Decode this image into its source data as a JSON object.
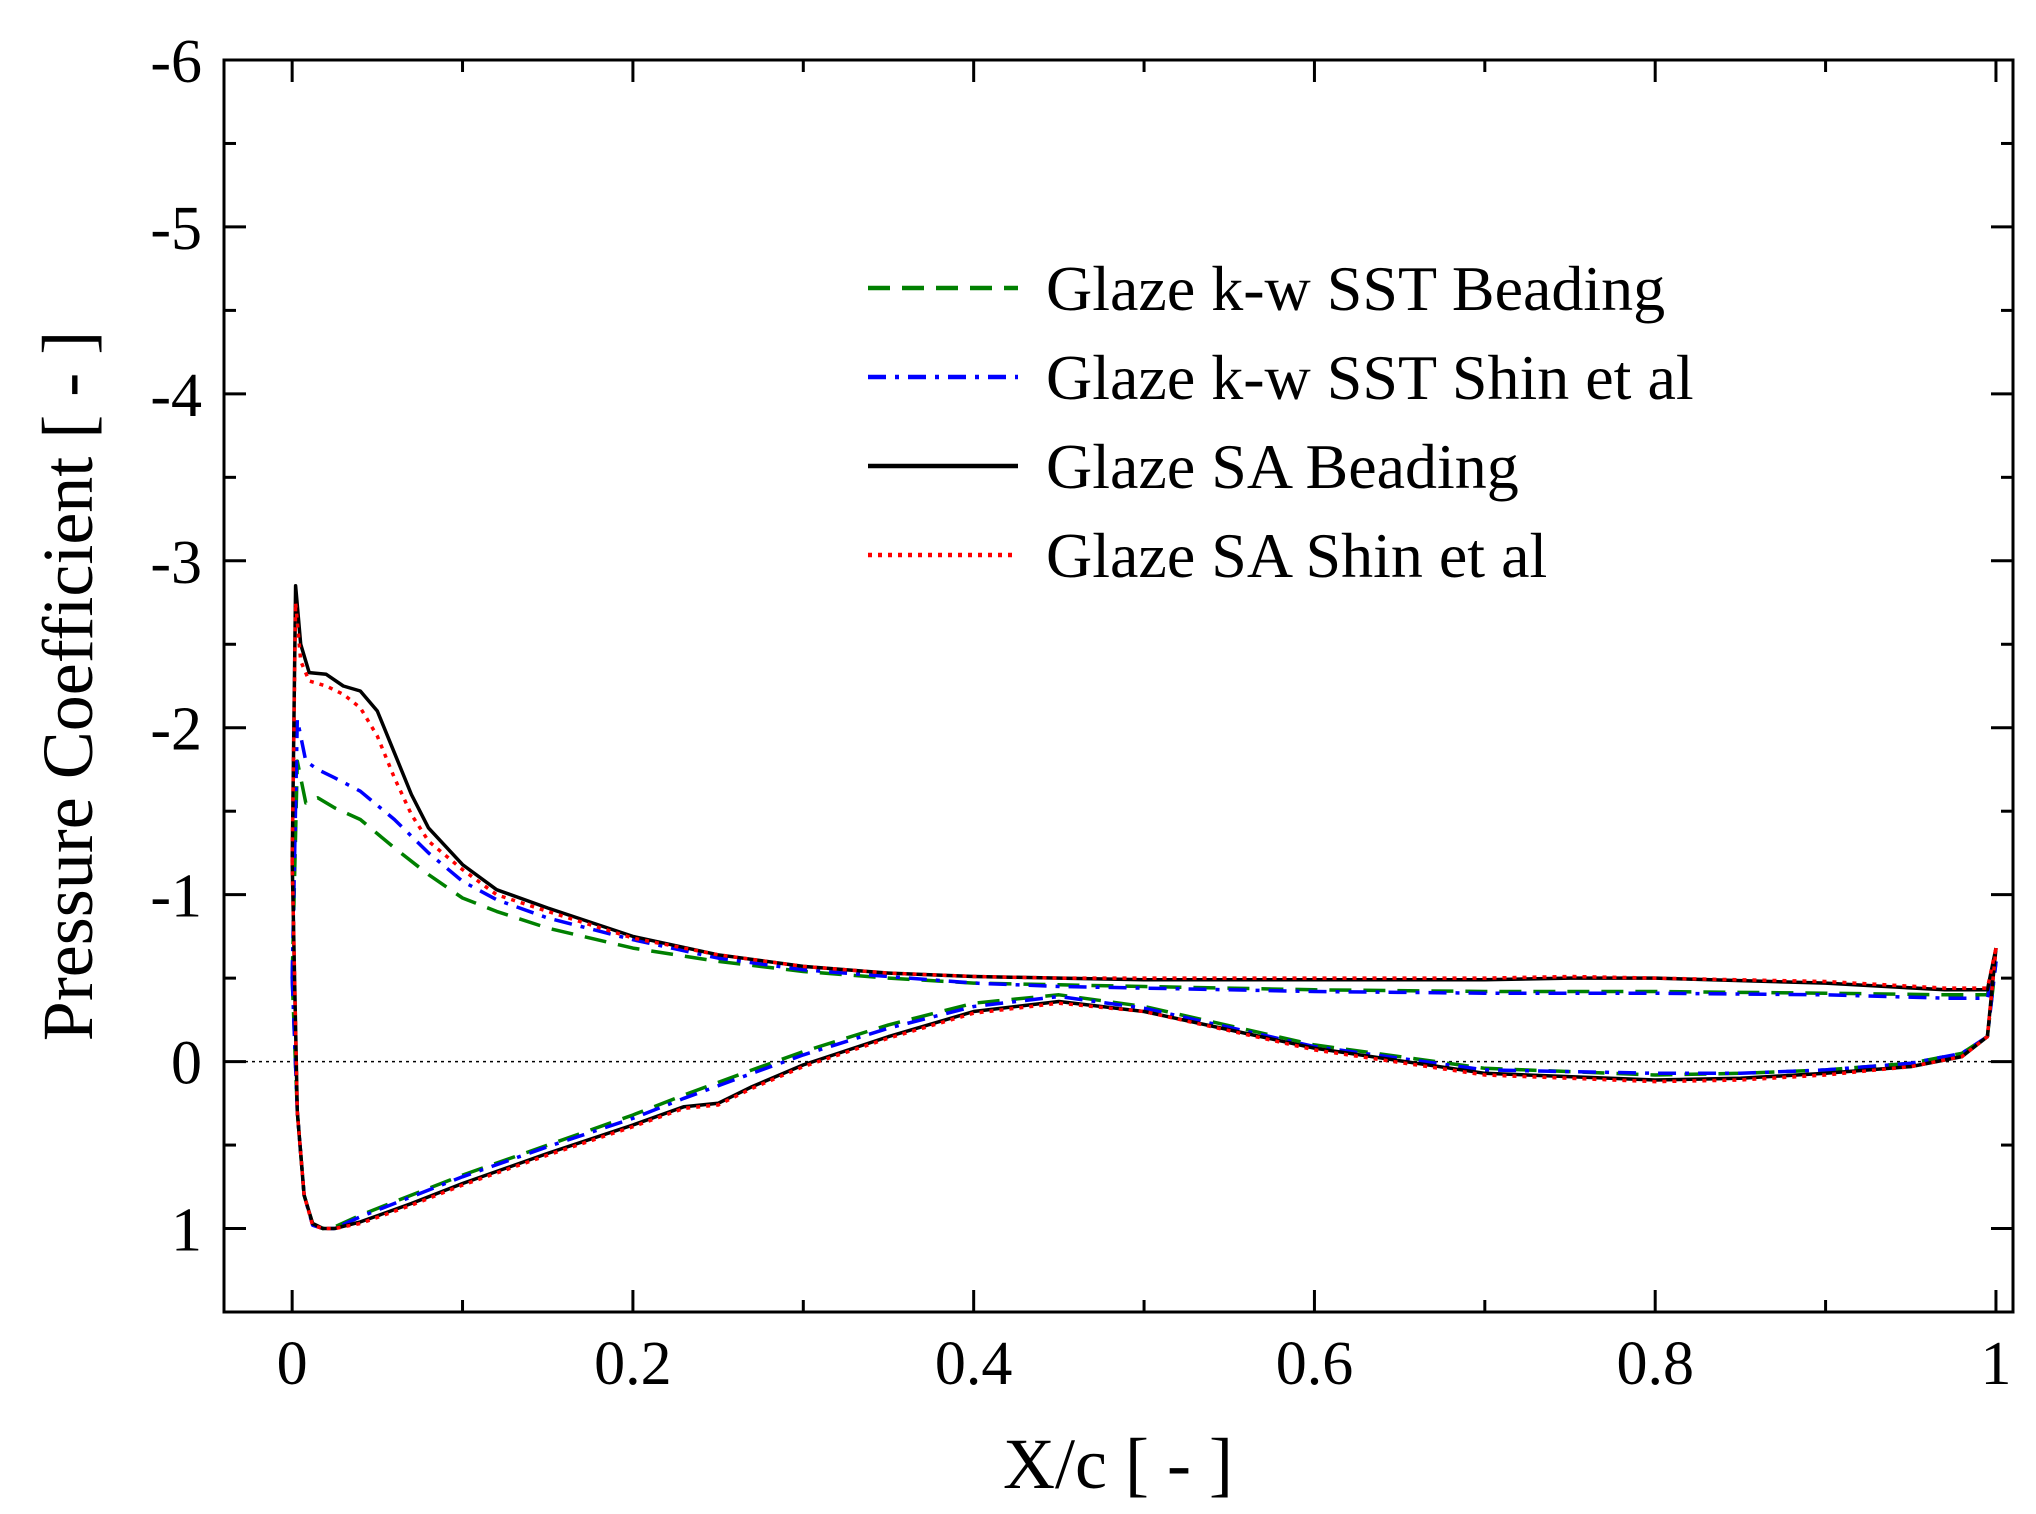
{
  "chart_data": {
    "type": "line",
    "title": "",
    "xlabel": "X/c [ - ]",
    "ylabel": "Pressure Coefficient [ - ]",
    "xlim": [
      -0.04,
      1.01
    ],
    "ylim": [
      1.5,
      -6
    ],
    "y_inverted": true,
    "xticks": [
      0,
      0.2,
      0.4,
      0.6,
      0.8,
      1
    ],
    "xtick_labels": [
      "0",
      "0.2",
      "0.4",
      "0.6",
      "0.8",
      "1"
    ],
    "yticks": [
      -6,
      -5,
      -4,
      -3,
      -2,
      -1,
      0,
      1
    ],
    "ytick_labels": [
      "-6",
      "-5",
      "-4",
      "-3",
      "-2",
      "-1",
      "0",
      "1"
    ],
    "zero_line": true,
    "grid": false,
    "legend_position": "top-right",
    "series": [
      {
        "name": "Glaze k-w SST Beading",
        "color": "#008000",
        "dash": "dashed",
        "upper": {
          "x": [
            0.0,
            0.003,
            0.008,
            0.015,
            0.025,
            0.04,
            0.06,
            0.08,
            0.1,
            0.12,
            0.15,
            0.2,
            0.25,
            0.3,
            0.35,
            0.4,
            0.45,
            0.5,
            0.6,
            0.7,
            0.8,
            0.9,
            0.97,
            0.995,
            1.0
          ],
          "y": [
            -0.5,
            -1.8,
            -1.55,
            -1.58,
            -1.52,
            -1.45,
            -1.28,
            -1.12,
            -0.98,
            -0.9,
            -0.8,
            -0.68,
            -0.6,
            -0.54,
            -0.5,
            -0.47,
            -0.46,
            -0.45,
            -0.43,
            -0.42,
            -0.42,
            -0.41,
            -0.4,
            -0.4,
            -0.6
          ]
        },
        "lower": {
          "x": [
            0.0,
            0.003,
            0.007,
            0.012,
            0.018,
            0.025,
            0.04,
            0.07,
            0.1,
            0.15,
            0.2,
            0.23,
            0.27,
            0.3,
            0.35,
            0.4,
            0.45,
            0.5,
            0.6,
            0.7,
            0.8,
            0.85,
            0.9,
            0.95,
            0.98,
            0.995,
            1.0
          ],
          "y": [
            -0.5,
            0.3,
            0.8,
            0.97,
            1.0,
            0.99,
            0.92,
            0.8,
            0.68,
            0.5,
            0.32,
            0.2,
            0.05,
            -0.06,
            -0.22,
            -0.35,
            -0.4,
            -0.33,
            -0.1,
            0.04,
            0.08,
            0.07,
            0.05,
            0.01,
            -0.05,
            -0.15,
            -0.6
          ]
        }
      },
      {
        "name": "Glaze k-w SST Shin et al",
        "color": "#0000ff",
        "dash": "dash-dot",
        "upper": {
          "x": [
            0.0,
            0.003,
            0.008,
            0.015,
            0.025,
            0.04,
            0.06,
            0.08,
            0.1,
            0.12,
            0.15,
            0.2,
            0.25,
            0.3,
            0.35,
            0.4,
            0.45,
            0.5,
            0.6,
            0.7,
            0.8,
            0.9,
            0.97,
            0.995,
            1.0
          ],
          "y": [
            -0.5,
            -2.05,
            -1.8,
            -1.75,
            -1.7,
            -1.62,
            -1.45,
            -1.25,
            -1.08,
            -0.97,
            -0.86,
            -0.73,
            -0.62,
            -0.55,
            -0.51,
            -0.47,
            -0.45,
            -0.44,
            -0.42,
            -0.41,
            -0.41,
            -0.4,
            -0.38,
            -0.38,
            -0.6
          ]
        },
        "lower": {
          "x": [
            0.0,
            0.003,
            0.007,
            0.012,
            0.018,
            0.025,
            0.04,
            0.07,
            0.1,
            0.15,
            0.2,
            0.23,
            0.27,
            0.3,
            0.35,
            0.4,
            0.45,
            0.5,
            0.6,
            0.7,
            0.8,
            0.85,
            0.9,
            0.95,
            0.98,
            0.995,
            1.0
          ],
          "y": [
            -0.5,
            0.3,
            0.8,
            0.98,
            1.0,
            1.0,
            0.93,
            0.81,
            0.69,
            0.51,
            0.34,
            0.22,
            0.07,
            -0.04,
            -0.2,
            -0.33,
            -0.39,
            -0.32,
            -0.09,
            0.05,
            0.07,
            0.07,
            0.05,
            0.01,
            -0.05,
            -0.15,
            -0.6
          ]
        }
      },
      {
        "name": "Glaze SA Beading",
        "color": "#000000",
        "dash": "solid",
        "upper": {
          "x": [
            0.0,
            0.002,
            0.005,
            0.01,
            0.02,
            0.03,
            0.04,
            0.05,
            0.06,
            0.07,
            0.08,
            0.1,
            0.12,
            0.15,
            0.2,
            0.25,
            0.3,
            0.35,
            0.4,
            0.45,
            0.5,
            0.6,
            0.7,
            0.75,
            0.8,
            0.9,
            0.97,
            0.995,
            1.0
          ],
          "y": [
            -1.2,
            -2.85,
            -2.5,
            -2.33,
            -2.32,
            -2.25,
            -2.22,
            -2.1,
            -1.85,
            -1.6,
            -1.4,
            -1.18,
            -1.03,
            -0.92,
            -0.75,
            -0.64,
            -0.57,
            -0.53,
            -0.51,
            -0.5,
            -0.49,
            -0.49,
            -0.49,
            -0.5,
            -0.5,
            -0.47,
            -0.43,
            -0.43,
            -0.68
          ]
        },
        "lower": {
          "x": [
            0.0,
            0.003,
            0.007,
            0.012,
            0.018,
            0.025,
            0.04,
            0.07,
            0.1,
            0.15,
            0.2,
            0.23,
            0.25,
            0.27,
            0.3,
            0.35,
            0.4,
            0.45,
            0.5,
            0.6,
            0.7,
            0.8,
            0.85,
            0.9,
            0.95,
            0.98,
            0.995,
            1.0
          ],
          "y": [
            -1.2,
            0.3,
            0.8,
            0.97,
            1.0,
            1.0,
            0.96,
            0.85,
            0.73,
            0.55,
            0.38,
            0.27,
            0.25,
            0.15,
            0.02,
            -0.15,
            -0.3,
            -0.36,
            -0.3,
            -0.08,
            0.07,
            0.11,
            0.1,
            0.07,
            0.03,
            -0.03,
            -0.15,
            -0.68
          ]
        }
      },
      {
        "name": "Glaze SA Shin et al",
        "color": "#ff0000",
        "dash": "dotted",
        "upper": {
          "x": [
            0.0,
            0.002,
            0.005,
            0.01,
            0.02,
            0.03,
            0.04,
            0.05,
            0.06,
            0.07,
            0.08,
            0.1,
            0.12,
            0.15,
            0.2,
            0.25,
            0.3,
            0.35,
            0.4,
            0.45,
            0.5,
            0.6,
            0.7,
            0.75,
            0.8,
            0.9,
            0.97,
            0.995,
            1.0
          ],
          "y": [
            -1.2,
            -2.75,
            -2.4,
            -2.28,
            -2.25,
            -2.2,
            -2.12,
            -1.95,
            -1.7,
            -1.48,
            -1.32,
            -1.15,
            -1.0,
            -0.9,
            -0.74,
            -0.64,
            -0.57,
            -0.53,
            -0.51,
            -0.5,
            -0.5,
            -0.5,
            -0.5,
            -0.51,
            -0.5,
            -0.48,
            -0.44,
            -0.44,
            -0.68
          ]
        },
        "lower": {
          "x": [
            0.0,
            0.003,
            0.007,
            0.012,
            0.018,
            0.025,
            0.04,
            0.07,
            0.1,
            0.15,
            0.2,
            0.23,
            0.25,
            0.27,
            0.3,
            0.35,
            0.4,
            0.45,
            0.5,
            0.6,
            0.7,
            0.8,
            0.85,
            0.9,
            0.95,
            0.98,
            0.995,
            1.0
          ],
          "y": [
            -1.2,
            0.3,
            0.8,
            0.98,
            1.0,
            1.0,
            0.97,
            0.86,
            0.74,
            0.56,
            0.39,
            0.28,
            0.26,
            0.16,
            0.03,
            -0.14,
            -0.29,
            -0.35,
            -0.3,
            -0.07,
            0.08,
            0.12,
            0.11,
            0.08,
            0.03,
            -0.03,
            -0.15,
            -0.68
          ]
        }
      }
    ]
  }
}
